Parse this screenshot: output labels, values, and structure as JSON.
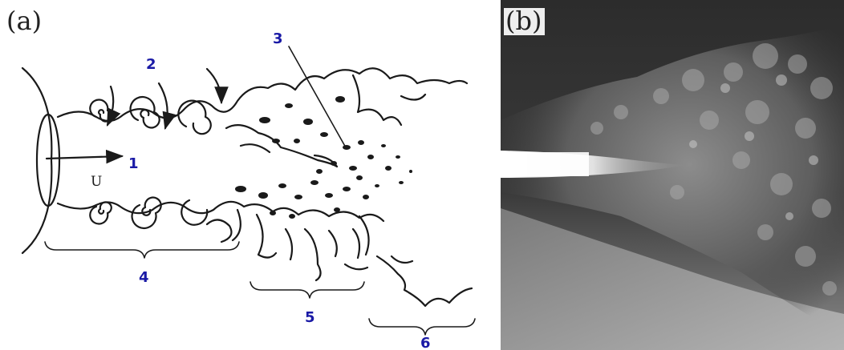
{
  "panels": {
    "a_label": "(a)",
    "b_label": "(b)"
  },
  "diagram": {
    "velocity_symbol": "U",
    "callouts": [
      "1",
      "2",
      "3",
      "4",
      "5",
      "6"
    ],
    "callout_color": "#1a1aa6",
    "ink_color": "#1a1a1a"
  }
}
